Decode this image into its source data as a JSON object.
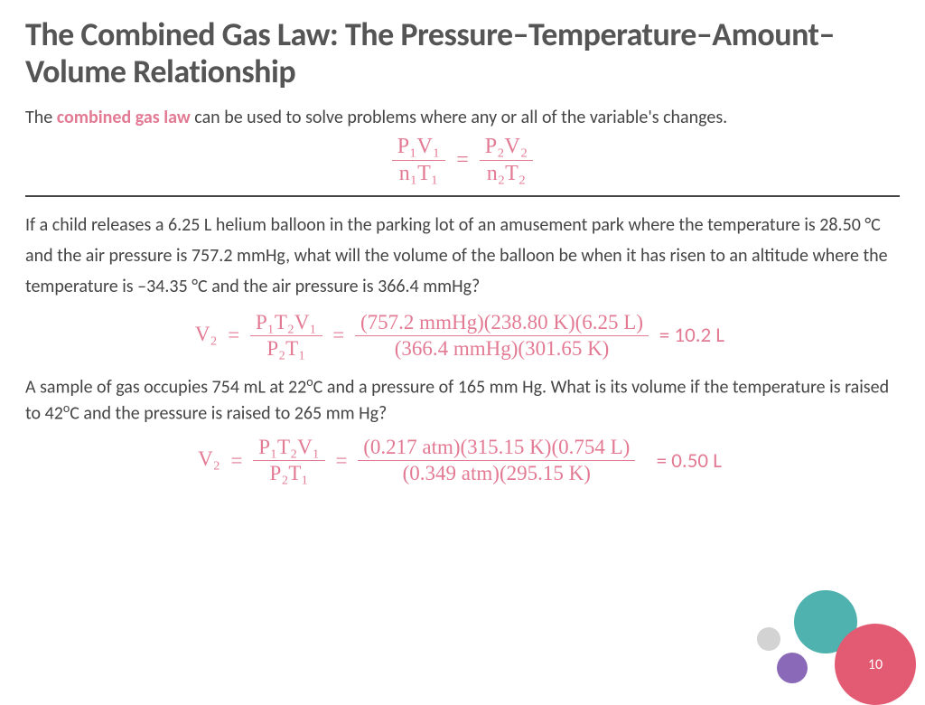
{
  "colors": {
    "title": "#555555",
    "body": "#444444",
    "accent_pink": "#e37a94",
    "circle_pink": "#e35a73",
    "circle_teal": "#4fb2af",
    "circle_purple": "#8a69b8",
    "circle_grey": "#d3d3d3",
    "background": "#ffffff"
  },
  "title": "The Combined Gas Law: The Pressure–Temperature–Amount–Volume Relationship",
  "intro_pre": "The ",
  "intro_keyword": "combined gas law",
  "intro_post": " can be used to solve problems where any or all of the variable's changes.",
  "main_eq": {
    "left_num": "P₁V₁",
    "left_den": "n₁T₁",
    "right_num": "P₂V₂",
    "right_den": "n₂T₂"
  },
  "problem1": "If a child releases a 6.25 L helium balloon in the parking lot of an amusement park where the temperature is 28.50 °C and the air pressure is 757.2 mmHg, what will the volume of the balloon be when it has risen to an altitude where the temperature is –34.35 °C and the air pressure is 366.4 mmHg?",
  "sol1": {
    "lhs": "V₂",
    "sym_num": "P₁T₂V₁",
    "sym_den": "P₂T₁",
    "val_num": "(757.2 mmHg)(238.80 K)(6.25 L)",
    "val_den": "(366.4 mmHg)(301.65 K)",
    "result": "= 10.2 L"
  },
  "problem2_a": "A sample of gas occupies 754 mL at 22",
  "problem2_b": "C and a pressure of 165 mm Hg.  What is its volume if the temperature is raised to 42",
  "problem2_c": "C and the pressure is raised to 265 mm Hg?",
  "sol2": {
    "lhs": "V₂",
    "sym_num": "P₁T₂V₁",
    "sym_den": "P₂T₁",
    "val_num": "(0.217 atm)(315.15 K)(0.754 L)",
    "val_den": "(0.349 atm)(295.15 K)",
    "result": "= 0.50 L"
  },
  "page_number": "10"
}
